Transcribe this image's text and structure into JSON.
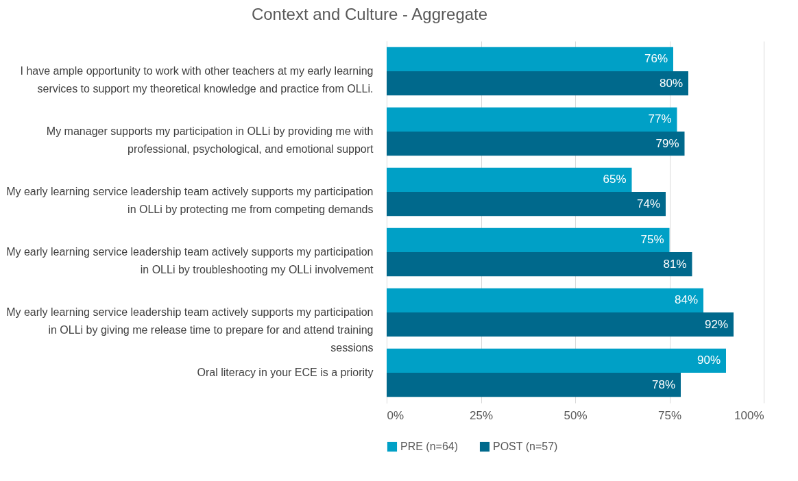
{
  "chart_data": {
    "type": "bar",
    "orientation": "horizontal",
    "title": "Context and Culture - Aggregate",
    "categories": [
      "I have ample opportunity to work with other teachers at my early learning services to support my theoretical knowledge and practice from OLLi.",
      "My manager supports my participation in OLLi  by providing me with professional, psychological, and emotional support",
      "My early learning service leadership team actively supports my participation in OLLi by protecting me from competing demands",
      "My early learning service leadership team actively supports my participation in OLLi by troubleshooting my OLLi involvement",
      "My early learning service leadership team actively supports my participation in OLLi by giving me release time to prepare for and attend training sessions",
      "Oral literacy in your ECE is a priority"
    ],
    "series": [
      {
        "name": "PRE (n=64)",
        "color": "#00a0c6",
        "values": [
          76,
          77,
          65,
          75,
          84,
          90
        ]
      },
      {
        "name": "POST (n=57)",
        "color": "#00698c",
        "values": [
          80,
          79,
          74,
          81,
          92,
          78
        ]
      }
    ],
    "xlim": [
      0,
      100
    ],
    "xticks": [
      {
        "value": 0,
        "label": "0%"
      },
      {
        "value": 25,
        "label": "25%"
      },
      {
        "value": 50,
        "label": "50%"
      },
      {
        "value": 75,
        "label": "75%"
      },
      {
        "value": 100,
        "label": "100%"
      }
    ],
    "value_labels": [
      [
        "76%",
        "77%",
        "65%",
        "75%",
        "84%",
        "90%"
      ],
      [
        "80%",
        "79%",
        "74%",
        "81%",
        "92%",
        "78%"
      ]
    ],
    "grid": "x",
    "legend": "bottom"
  }
}
